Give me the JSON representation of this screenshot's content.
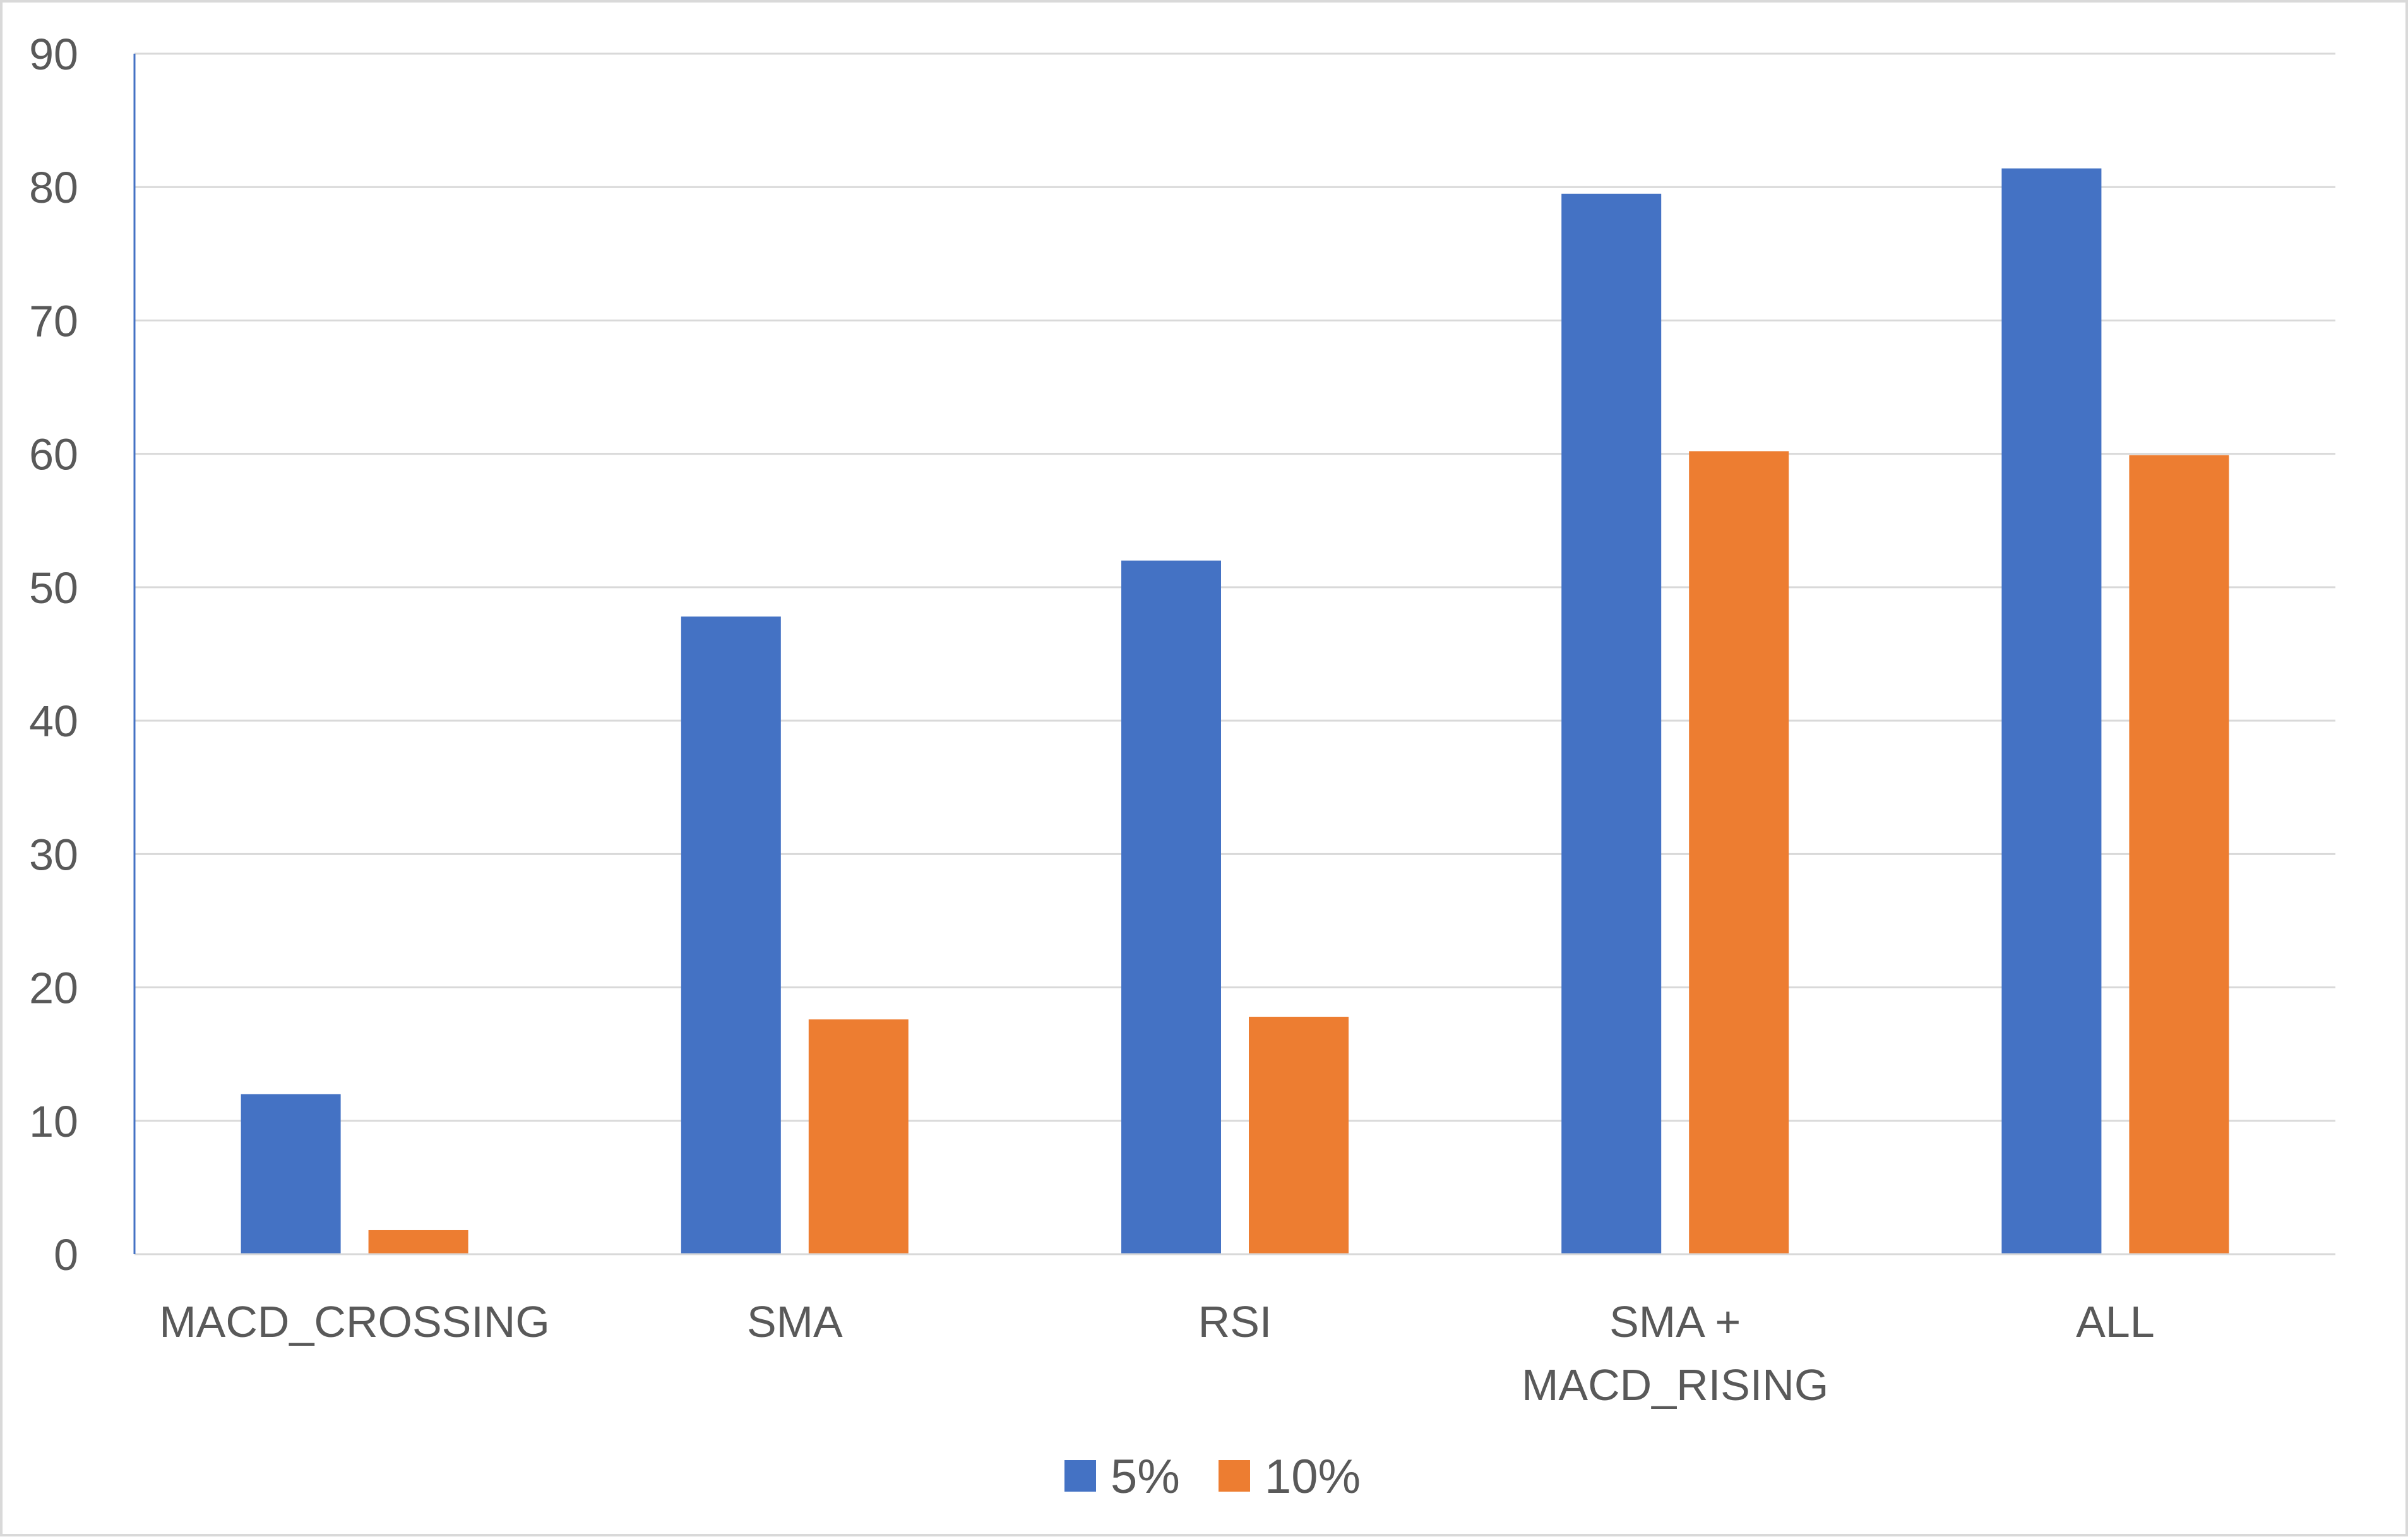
{
  "chart_data": {
    "type": "bar",
    "categories": [
      [
        "MACD_CROSSING"
      ],
      [
        "SMA"
      ],
      [
        "RSI"
      ],
      [
        "SMA +",
        "MACD_RISING"
      ],
      [
        "ALL"
      ]
    ],
    "series": [
      {
        "name": "5%",
        "color": "#4472c4",
        "values": [
          12,
          47.8,
          52,
          79.5,
          81.4
        ]
      },
      {
        "name": "10%",
        "color": "#ed7d31",
        "values": [
          1.8,
          17.6,
          17.8,
          60.2,
          59.9
        ]
      }
    ],
    "ylim": [
      0,
      90
    ],
    "yticks": [
      0,
      10,
      20,
      30,
      40,
      50,
      60,
      70,
      80,
      90
    ],
    "grid": true,
    "legend_position": "bottom"
  }
}
